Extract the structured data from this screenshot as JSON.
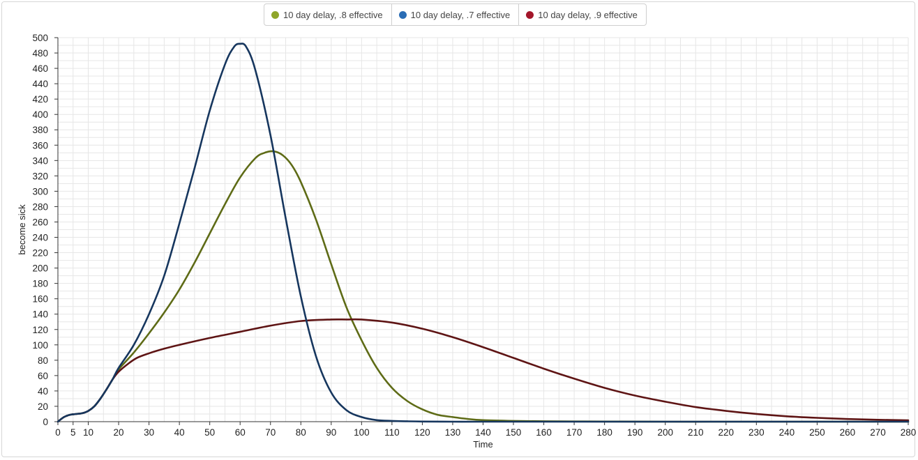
{
  "chart_data": {
    "type": "line",
    "xlabel": "Time",
    "ylabel": "become sick",
    "xlim": [
      0,
      280
    ],
    "ylim": [
      0,
      500
    ],
    "x_ticks": [
      0,
      5,
      10,
      20,
      30,
      40,
      50,
      60,
      70,
      80,
      90,
      100,
      110,
      120,
      130,
      140,
      150,
      160,
      170,
      180,
      190,
      200,
      210,
      220,
      230,
      240,
      250,
      260,
      270,
      280
    ],
    "y_ticks": [
      0,
      20,
      40,
      60,
      80,
      100,
      120,
      140,
      160,
      180,
      200,
      220,
      240,
      260,
      280,
      300,
      320,
      340,
      360,
      380,
      400,
      420,
      440,
      460,
      480,
      500
    ],
    "grid": true,
    "legend_position": "top-center",
    "series": [
      {
        "name": "10 day delay, .8 effective",
        "color": "#5e6b16",
        "legend_color": "#8fa52a",
        "x": [
          0,
          2,
          4,
          6,
          8,
          10,
          12,
          14,
          16,
          18,
          20,
          25,
          30,
          35,
          40,
          45,
          50,
          55,
          60,
          65,
          68,
          71,
          74,
          77,
          80,
          85,
          90,
          95,
          100,
          105,
          110,
          115,
          120,
          125,
          130,
          135,
          140,
          150,
          160,
          170,
          180,
          200,
          220,
          240,
          260,
          280
        ],
        "y": [
          0,
          6,
          9,
          10,
          11,
          14,
          20,
          30,
          42,
          55,
          68,
          90,
          115,
          142,
          172,
          207,
          245,
          283,
          318,
          343,
          350,
          352,
          347,
          334,
          312,
          263,
          205,
          149,
          106,
          70,
          44,
          27,
          16,
          9,
          6,
          3.5,
          2,
          1,
          0.5,
          0.3,
          0.2,
          0,
          0,
          0,
          0,
          0
        ]
      },
      {
        "name": "10 day delay, .7 effective",
        "color": "#16365e",
        "legend_color": "#2a6db5",
        "x": [
          0,
          2,
          4,
          6,
          8,
          10,
          12,
          14,
          16,
          18,
          20,
          25,
          30,
          35,
          40,
          45,
          50,
          55,
          58,
          60,
          62,
          65,
          70,
          75,
          80,
          85,
          90,
          95,
          100,
          105,
          110,
          115,
          120,
          130,
          140,
          160,
          180,
          200,
          240,
          280
        ],
        "y": [
          0,
          6,
          9,
          10,
          11,
          14,
          20,
          30,
          42,
          55,
          70,
          100,
          140,
          190,
          258,
          330,
          405,
          465,
          488,
          492,
          488,
          458,
          373,
          265,
          163,
          85,
          38,
          15,
          6,
          2,
          1,
          0.5,
          0.2,
          0,
          0,
          0,
          0,
          0,
          0,
          0
        ]
      },
      {
        "name": "10 day delay, .9 effective",
        "color": "#5e1414",
        "legend_color": "#a3162a",
        "x": [
          0,
          2,
          4,
          6,
          8,
          10,
          12,
          14,
          16,
          18,
          20,
          23,
          26,
          30,
          35,
          40,
          50,
          60,
          70,
          80,
          90,
          95,
          100,
          110,
          120,
          130,
          140,
          150,
          160,
          170,
          180,
          190,
          200,
          210,
          220,
          230,
          240,
          250,
          260,
          270,
          280
        ],
        "y": [
          0,
          6,
          9,
          10,
          11,
          14,
          20,
          30,
          42,
          55,
          65,
          75,
          83,
          89,
          95,
          100,
          109,
          117,
          125,
          131,
          133,
          133,
          133,
          129,
          121,
          110,
          97,
          83,
          69,
          56,
          44,
          34,
          26,
          19,
          14,
          10,
          7,
          5,
          3.5,
          2.5,
          1.8
        ]
      }
    ]
  }
}
